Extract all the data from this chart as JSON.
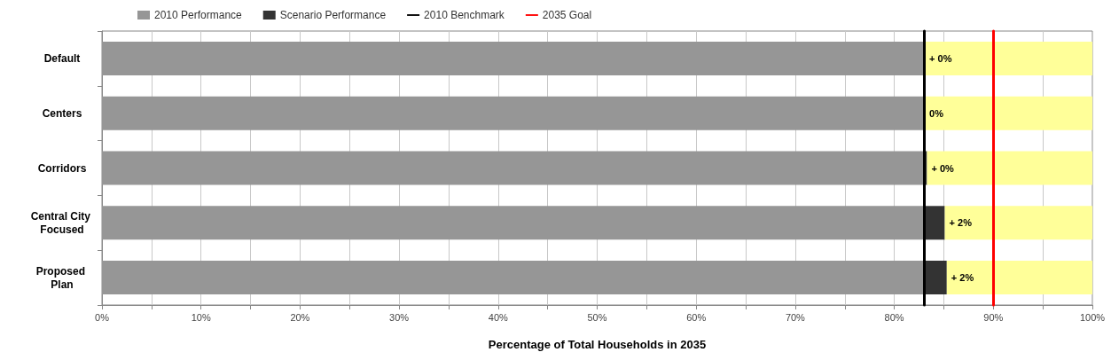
{
  "chart_data": {
    "type": "bar",
    "orientation": "horizontal",
    "stacked": true,
    "xlabel": "Percentage of Total Households in 2035",
    "categories": [
      "Default",
      "Centers",
      "Corridors",
      "Central City Focused",
      "Proposed Plan"
    ],
    "series": [
      {
        "name": "2010 Performance",
        "color": "#969696",
        "values": [
          83,
          83,
          83,
          83,
          83
        ]
      },
      {
        "name": "Scenario Performance",
        "color": "#333333",
        "values": [
          0,
          0,
          0.3,
          2.1,
          2.3
        ],
        "value_labels": [
          "+ 0%",
          "0%",
          "+ 0%",
          "+ 2%",
          "+ 2%"
        ]
      },
      {
        "color": "#ffff99",
        "values": [
          17,
          17,
          16.7,
          14.9,
          14.7
        ]
      }
    ],
    "ref_lines": [
      {
        "axis": "x",
        "value": 83,
        "label": "2010 Benchmark",
        "color": "#000000"
      },
      {
        "axis": "x",
        "value": 90,
        "label": "2035 Goal",
        "color": "#ff0000"
      }
    ],
    "xlim": [
      0,
      100
    ],
    "xticks": [
      {
        "value": 0,
        "label": "0%"
      },
      {
        "value": 5,
        "label": null
      },
      {
        "value": 10,
        "label": "10%"
      },
      {
        "value": 15,
        "label": null
      },
      {
        "value": 20,
        "label": "20%"
      },
      {
        "value": 25,
        "label": null
      },
      {
        "value": 30,
        "label": "30%"
      },
      {
        "value": 35,
        "label": null
      },
      {
        "value": 40,
        "label": "40%"
      },
      {
        "value": 45,
        "label": null
      },
      {
        "value": 50,
        "label": "50%"
      },
      {
        "value": 55,
        "label": null
      },
      {
        "value": 60,
        "label": "60%"
      },
      {
        "value": 65,
        "label": null
      },
      {
        "value": 70,
        "label": "70%"
      },
      {
        "value": 75,
        "label": null
      },
      {
        "value": 80,
        "label": "80%"
      },
      {
        "value": 85,
        "label": null
      },
      {
        "value": 90,
        "label": "90%"
      },
      {
        "value": 95,
        "label": null
      },
      {
        "value": 100,
        "label": "100%"
      }
    ],
    "grid": "x",
    "legend": "top"
  }
}
